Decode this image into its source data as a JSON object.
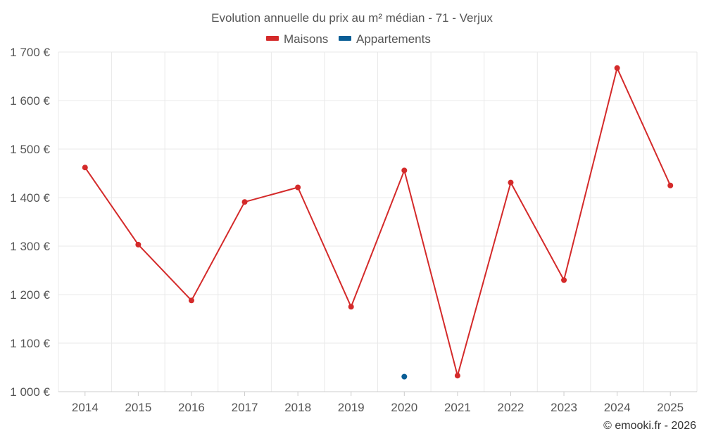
{
  "chart_data": {
    "type": "line",
    "title": "Evolution annuelle du prix au m² médian - 71 - Verjux",
    "categories": [
      "2014",
      "2015",
      "2016",
      "2017",
      "2018",
      "2019",
      "2020",
      "2021",
      "2022",
      "2023",
      "2024",
      "2025"
    ],
    "series": [
      {
        "name": "Maisons",
        "color": "#d42a2a",
        "values": [
          1462,
          1303,
          1188,
          1391,
          1421,
          1175,
          1456,
          1033,
          1431,
          1230,
          1667,
          1425
        ]
      },
      {
        "name": "Appartements",
        "color": "#0a5e96",
        "values": [
          null,
          null,
          null,
          null,
          null,
          null,
          1031,
          null,
          null,
          null,
          null,
          null
        ]
      }
    ],
    "ylim": [
      1000,
      1700
    ],
    "yticks": [
      1000,
      1100,
      1200,
      1300,
      1400,
      1500,
      1600,
      1700
    ],
    "ytick_labels": [
      "1 000 €",
      "1 100 €",
      "1 200 €",
      "1 300 €",
      "1 400 €",
      "1 500 €",
      "1 600 €",
      "1 700 €"
    ],
    "xlabel": "",
    "ylabel": "",
    "grid": true,
    "legend_position": "top-center"
  },
  "credit": "© emooki.fr - 2026"
}
